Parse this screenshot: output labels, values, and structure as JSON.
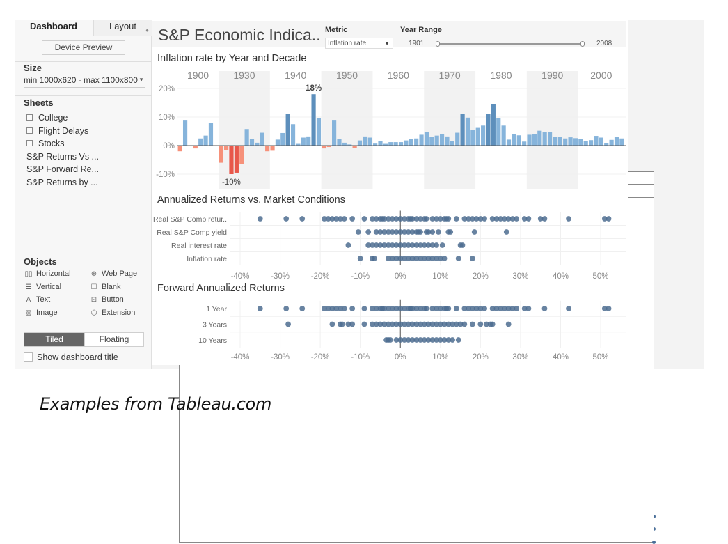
{
  "sidebar": {
    "tabs": [
      {
        "label": "Dashboard",
        "active": true
      },
      {
        "label": "Layout",
        "active": false
      }
    ],
    "device_preview_label": "Device Preview",
    "size": {
      "title": "Size",
      "value": "min 1000x620 - max 1100x800"
    },
    "sheets": {
      "title": "Sheets",
      "items": [
        {
          "label": "College",
          "icon": "worksheet-icon"
        },
        {
          "label": "Flight Delays",
          "icon": "worksheet-icon"
        },
        {
          "label": "Stocks",
          "icon": "worksheet-icon"
        },
        {
          "label": "S&P Returns Vs ...",
          "icon": "dashboard-sheet-icon"
        },
        {
          "label": "S&P Forward Re...",
          "icon": "dashboard-sheet-icon"
        },
        {
          "label": "S&P Returns by ...",
          "icon": "dashboard-sheet-icon"
        }
      ]
    },
    "objects": {
      "title": "Objects",
      "items": [
        {
          "label": "Horizontal",
          "icon": "horizontal-container-icon",
          "glyph": "▯▯"
        },
        {
          "label": "Web Page",
          "icon": "globe-icon",
          "glyph": "⊕"
        },
        {
          "label": "Vertical",
          "icon": "vertical-container-icon",
          "glyph": "☰"
        },
        {
          "label": "Blank",
          "icon": "blank-icon",
          "glyph": "☐"
        },
        {
          "label": "Text",
          "icon": "text-icon",
          "glyph": "A"
        },
        {
          "label": "Button",
          "icon": "button-icon",
          "glyph": "⊡"
        },
        {
          "label": "Image",
          "icon": "image-icon",
          "glyph": "▨"
        },
        {
          "label": "Extension",
          "icon": "extension-icon",
          "glyph": "⬡"
        }
      ]
    },
    "layout_mode": {
      "options": [
        "Tiled",
        "Floating"
      ],
      "selected": "Tiled"
    },
    "show_title": {
      "label": "Show dashboard title",
      "checked": false
    }
  },
  "dashboard": {
    "title": "S&P Economic Indica..",
    "metric": {
      "label": "Metric",
      "value": "Inflation rate"
    },
    "year_range": {
      "label": "Year Range",
      "min": "1901",
      "max": "2008",
      "low": 1901,
      "high": 2008
    }
  },
  "chart_data": [
    {
      "type": "bar",
      "title": "Inflation rate by Year and Decade",
      "decades": [
        "1900",
        "1930",
        "1940",
        "1950",
        "1960",
        "1970",
        "1980",
        "1990",
        "2000"
      ],
      "decade_sizes": [
        8,
        10,
        10,
        10,
        10,
        10,
        10,
        10,
        9
      ],
      "values": [
        -2.0,
        9.0,
        0.0,
        -1.0,
        2.5,
        3.5,
        8.0,
        0.0,
        -6.0,
        -1.5,
        -10.0,
        -9.5,
        -6.5,
        5.8,
        2.3,
        1.0,
        4.5,
        -2.0,
        -1.8,
        2.1,
        4.4,
        11.0,
        7.5,
        0.6,
        2.8,
        3.2,
        18.0,
        9.6,
        -1.0,
        -0.5,
        9.0,
        2.3,
        1.0,
        0.4,
        -0.8,
        1.8,
        3.2,
        2.8,
        0.7,
        1.7,
        0.6,
        1.2,
        1.2,
        1.2,
        1.8,
        2.3,
        2.5,
        3.8,
        4.7,
        3.1,
        3.5,
        4.1,
        3.2,
        1.7,
        4.5,
        11.0,
        9.8,
        5.4,
        6.2,
        7.0,
        11.2,
        14.5,
        9.7,
        7.0,
        2.1,
        3.9,
        3.6,
        1.4,
        3.8,
        4.1,
        5.2,
        4.8,
        4.8,
        3.0,
        3.0,
        2.5,
        2.9,
        2.6,
        2.2,
        1.6,
        1.9,
        3.4,
        2.8,
        0.9,
        2.0,
        3.0,
        2.5
      ],
      "highlight": {
        "max_label": "18%",
        "min_label": "-10%"
      },
      "ylim": [
        -15,
        22
      ],
      "yticks": [
        "20%",
        "10%",
        "0%",
        "-10%"
      ],
      "colors": {
        "positive": "#86b4db",
        "positive_high": "#5d8fbc",
        "negative": "#f6917a",
        "negative_low": "#e8574a",
        "band": "#f2f2f2"
      }
    },
    {
      "type": "scatter",
      "title": "Annualized Returns vs. Market Conditions",
      "categories": [
        "Real S&P Comp retur..",
        "Real S&P Comp yield",
        "Real interest rate",
        "Inflation rate"
      ],
      "xlim": [
        -42,
        55
      ],
      "xticks": [
        "-40%",
        "-30%",
        "-20%",
        "-10%",
        "0%",
        "10%",
        "20%",
        "30%",
        "40%",
        "50%"
      ],
      "series": [
        {
          "name": "Real S&P Comp retur..",
          "values": [
            -35,
            -28.5,
            -24.5,
            -19,
            -18,
            -17,
            -16,
            -15,
            -14,
            -12,
            -9,
            -7,
            -6,
            -5,
            -4.5,
            -4,
            -3,
            -2,
            -1,
            0,
            1,
            2,
            2.5,
            3,
            4,
            5,
            6,
            6.5,
            8,
            9,
            10,
            11,
            11.5,
            12,
            14,
            16,
            17,
            18,
            19,
            20,
            21,
            23,
            24,
            25,
            26,
            27,
            28,
            29,
            31,
            32,
            35,
            36,
            42,
            51,
            52
          ]
        },
        {
          "name": "Real S&P Comp yield",
          "values": [
            -10.5,
            -8,
            -6,
            -5,
            -4,
            -3,
            -2,
            -1,
            0,
            1,
            2,
            3,
            4,
            4.5,
            5,
            6.5,
            7,
            8,
            9.5,
            12,
            12.5,
            18.5,
            26.5
          ]
        },
        {
          "name": "Real interest rate",
          "values": [
            -13,
            -8,
            -7,
            -6,
            -5,
            -4,
            -3,
            -2,
            -1,
            0,
            1,
            2,
            3,
            4,
            5,
            6,
            7,
            8,
            9,
            10.5,
            15,
            15.5
          ]
        },
        {
          "name": "Inflation rate",
          "values": [
            -10,
            -7,
            -6.5,
            -3,
            -2,
            -1,
            0,
            1,
            2,
            3,
            4,
            5,
            6,
            7,
            8,
            9,
            10,
            11,
            14.5,
            18
          ]
        }
      ],
      "color": "#4e6d91"
    },
    {
      "type": "scatter",
      "title": "Forward Annualized Returns",
      "categories": [
        "1 Year",
        "3 Years",
        "10 Years"
      ],
      "xlim": [
        -42,
        55
      ],
      "xticks": [
        "-40%",
        "-30%",
        "-20%",
        "-10%",
        "0%",
        "10%",
        "20%",
        "30%",
        "40%",
        "50%"
      ],
      "series": [
        {
          "name": "1 Year",
          "values": [
            -35,
            -28.5,
            -24.5,
            -19,
            -18,
            -17,
            -16,
            -15,
            -14,
            -12,
            -9,
            -7,
            -6,
            -5,
            -4.5,
            -4,
            -3,
            -2,
            -1,
            0,
            1,
            2,
            2.5,
            3,
            4,
            5,
            6,
            6.5,
            8,
            9,
            10,
            11,
            11.5,
            12,
            14,
            16,
            17,
            18,
            19,
            20,
            21,
            23,
            24,
            25,
            26,
            27,
            28,
            29,
            31,
            32,
            36,
            42,
            51,
            52
          ]
        },
        {
          "name": "3 Years",
          "values": [
            -28,
            -17,
            -15,
            -14.5,
            -13,
            -12,
            -9,
            -7,
            -6,
            -5,
            -4,
            -3,
            -2,
            -1,
            0,
            1,
            2,
            3,
            4,
            5,
            6,
            7,
            8,
            9,
            10,
            11,
            12,
            13,
            14,
            15,
            16,
            18,
            20,
            21.5,
            22.5,
            23,
            27
          ]
        },
        {
          "name": "10 Years",
          "values": [
            -3.5,
            -3,
            -2.5,
            -1,
            0,
            1,
            2,
            3,
            4,
            5,
            6,
            7,
            8,
            9,
            10,
            11,
            12,
            13,
            14.5
          ]
        }
      ],
      "color": "#4e6d91"
    }
  ],
  "caption": "Examples from Tableau.com"
}
